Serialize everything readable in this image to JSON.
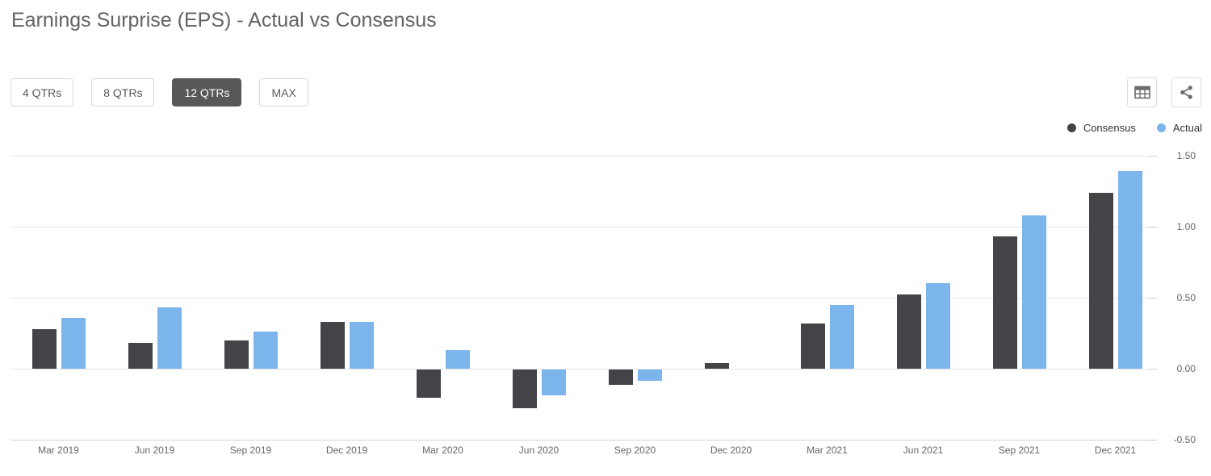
{
  "header": {
    "title": "Earnings Surprise (EPS) - Actual vs Consensus"
  },
  "toolbar": {
    "range_buttons": [
      {
        "label": "4 QTRs",
        "selected": false
      },
      {
        "label": "8 QTRs",
        "selected": false
      },
      {
        "label": "12 QTRs",
        "selected": true
      },
      {
        "label": "MAX",
        "selected": false
      }
    ],
    "icons": [
      {
        "name": "table-icon"
      },
      {
        "name": "share-icon"
      }
    ],
    "icon_color": "#6b6b6b"
  },
  "legend": [
    {
      "label": "Consensus",
      "color": "#434348"
    },
    {
      "label": "Actual",
      "color": "#7cb5ec"
    }
  ],
  "chart_data": {
    "type": "bar",
    "title": "Earnings Surprise (EPS) - Actual vs Consensus",
    "categories": [
      "Mar 2019",
      "Jun 2019",
      "Sep 2019",
      "Dec 2019",
      "Mar 2020",
      "Jun 2020",
      "Sep 2020",
      "Dec 2020",
      "Mar 2021",
      "Jun 2021",
      "Sep 2021",
      "Dec 2021"
    ],
    "series": [
      {
        "name": "Consensus",
        "color": "#434348",
        "values": [
          0.28,
          0.18,
          0.2,
          0.33,
          -0.2,
          -0.27,
          -0.11,
          0.04,
          0.32,
          0.52,
          0.93,
          1.24
        ]
      },
      {
        "name": "Actual",
        "color": "#7cb5ec",
        "values": [
          0.36,
          0.43,
          0.26,
          0.33,
          0.13,
          -0.18,
          -0.08,
          0.0,
          0.45,
          0.6,
          1.08,
          1.39
        ]
      }
    ],
    "xlabel": "",
    "ylabel": "",
    "ylim": [
      -0.5,
      1.5
    ],
    "yticks": [
      1.5,
      1.0,
      0.5,
      0.0,
      -0.5
    ],
    "ytick_labels": [
      "1.50",
      "1.00",
      "0.50",
      "0.00",
      "-0.50"
    ],
    "yaxis_side": "right",
    "grid": true,
    "legend_position": "top-right"
  }
}
